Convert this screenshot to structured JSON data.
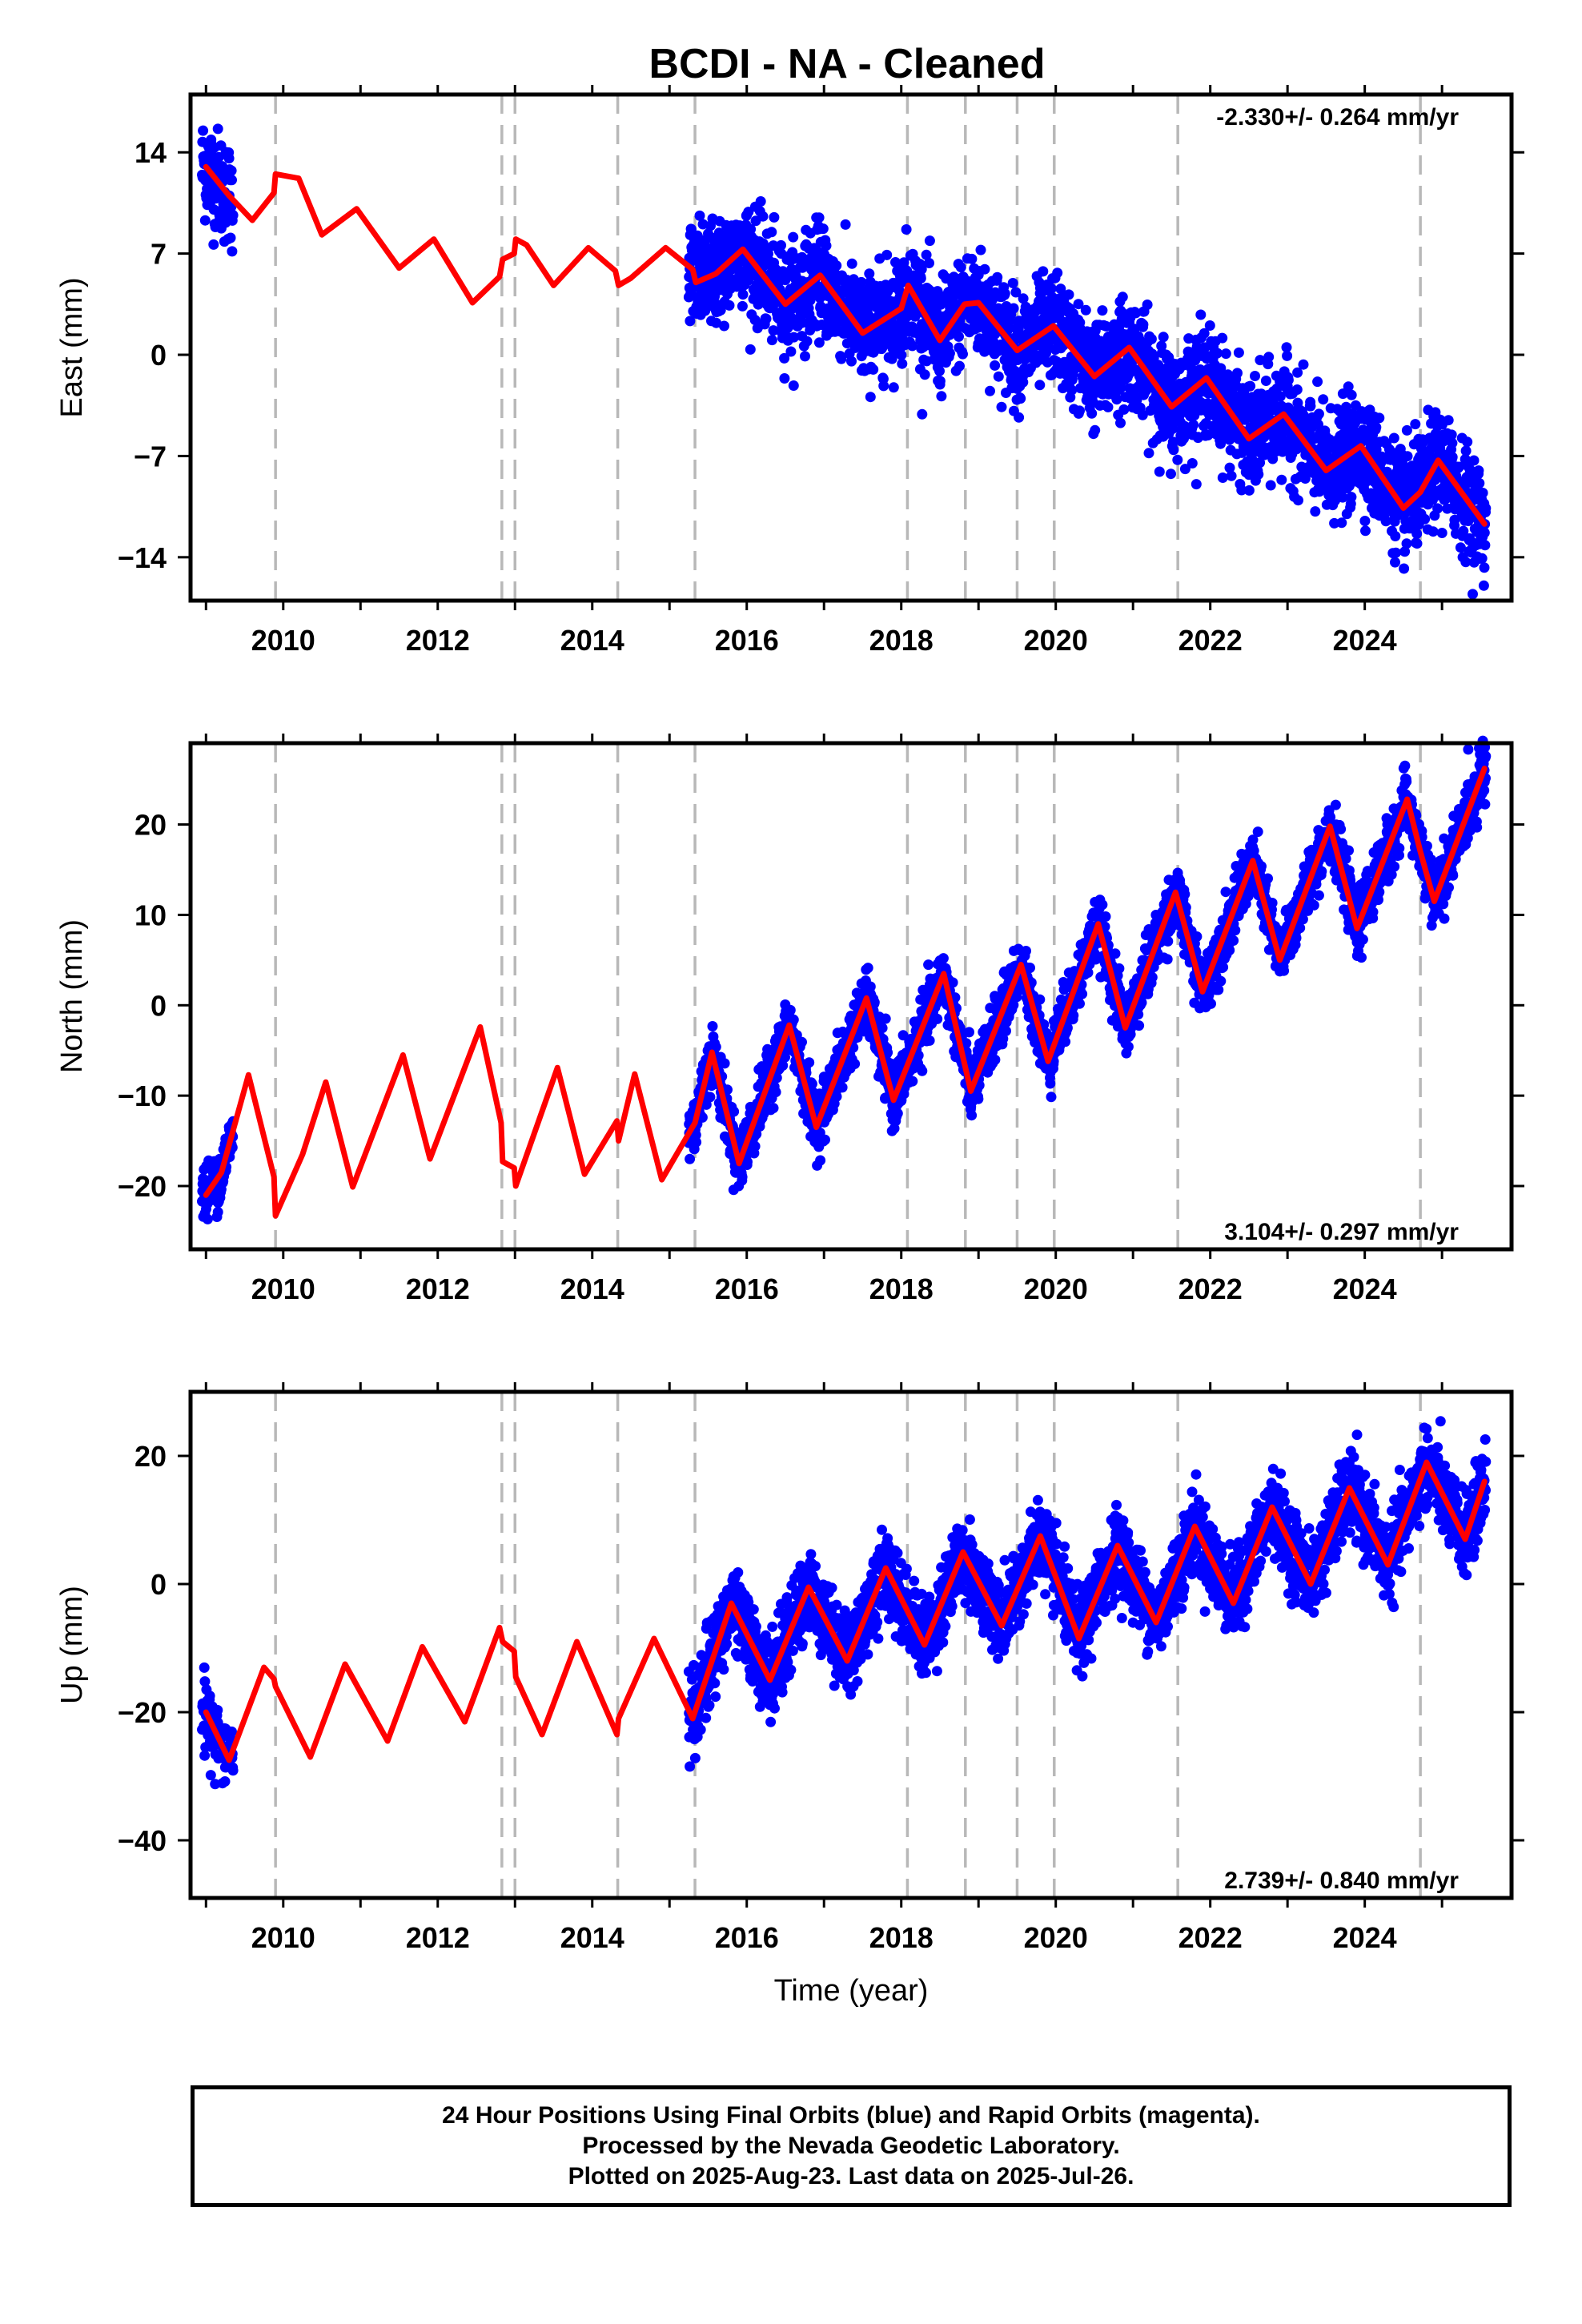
{
  "colors": {
    "data_points": "#0000ff",
    "model_fit": "#ff0000",
    "event_lines": "#b8b8b8",
    "frame": "#000000"
  },
  "footer": {
    "line1": "24 Hour Positions Using Final Orbits (blue) and Rapid Orbits (magenta).",
    "line2": "Processed by the Nevada Geodetic Laboratory.",
    "line3": "Plotted on 2025-Aug-23. Last data on 2025-Jul-26."
  },
  "chart_data": {
    "title": "BCDI  - NA - Cleaned",
    "xlabel": "Time (year)",
    "xlim": [
      2008.8,
      2025.9
    ],
    "x_ticks": [
      "2010",
      "2012",
      "2014",
      "2016",
      "2018",
      "2020",
      "2022",
      "2024"
    ],
    "event_lines_years": [
      2009.9,
      2012.83,
      2013.0,
      2014.33,
      2015.33,
      2018.08,
      2018.83,
      2019.5,
      2019.98,
      2021.58,
      2024.72
    ],
    "data_span_years": [
      [
        2008.95,
        2009.35
      ],
      [
        2015.25,
        2025.57
      ]
    ],
    "panels": [
      {
        "type": "scatter",
        "ylabel": "East (mm)",
        "ylim": [
          -17,
          18
        ],
        "y_ticks": [
          "14",
          "7",
          "0",
          "−7",
          "−14"
        ],
        "rate": "-2.330+/- 0.264 mm/yr",
        "rate_position": "top-right",
        "series": [
          {
            "name": "24 Hour Positions",
            "trend_per_year": -2.33,
            "value_at_2016": 5.5,
            "seasonal_amplitude": 2.2,
            "scatter": 1.8
          },
          {
            "name": "model fit",
            "points": [
              [
                2009.0,
                13.0
              ],
              [
                2009.3,
                11.0
              ],
              [
                2009.6,
                9.3
              ],
              [
                2009.88,
                11.2
              ],
              [
                2009.9,
                12.5
              ],
              [
                2010.2,
                12.2
              ],
              [
                2010.5,
                8.3
              ],
              [
                2010.95,
                10.1
              ],
              [
                2011.5,
                6.0
              ],
              [
                2011.95,
                8.0
              ],
              [
                2012.45,
                3.6
              ],
              [
                2012.8,
                5.4
              ],
              [
                2012.84,
                6.6
              ],
              [
                2012.99,
                7.0
              ],
              [
                2013.01,
                8.0
              ],
              [
                2013.15,
                7.6
              ],
              [
                2013.5,
                4.8
              ],
              [
                2013.95,
                7.4
              ],
              [
                2014.3,
                5.8
              ],
              [
                2014.34,
                4.8
              ],
              [
                2014.5,
                5.3
              ],
              [
                2014.95,
                7.4
              ],
              [
                2015.3,
                5.9
              ],
              [
                2015.34,
                5.0
              ],
              [
                2015.6,
                5.6
              ],
              [
                2015.95,
                7.3
              ],
              [
                2016.5,
                3.5
              ],
              [
                2016.95,
                5.5
              ],
              [
                2017.5,
                1.5
              ],
              [
                2018.0,
                3.2
              ],
              [
                2018.09,
                4.8
              ],
              [
                2018.5,
                1.0
              ],
              [
                2018.82,
                3.5
              ],
              [
                2019.0,
                3.6
              ],
              [
                2019.5,
                0.3
              ],
              [
                2019.97,
                2.0
              ],
              [
                2020.5,
                -1.5
              ],
              [
                2020.95,
                0.5
              ],
              [
                2021.5,
                -3.6
              ],
              [
                2021.95,
                -1.6
              ],
              [
                2022.5,
                -5.8
              ],
              [
                2022.95,
                -4.1
              ],
              [
                2023.5,
                -8.0
              ],
              [
                2023.95,
                -6.3
              ],
              [
                2024.5,
                -10.6
              ],
              [
                2024.72,
                -9.5
              ],
              [
                2024.95,
                -7.3
              ],
              [
                2025.55,
                -11.7
              ]
            ]
          }
        ]
      },
      {
        "type": "scatter",
        "ylabel": "North (mm)",
        "ylim": [
          -27,
          29
        ],
        "y_ticks": [
          "20",
          "10",
          "0",
          "−10",
          "−20"
        ],
        "rate": "3.104+/- 0.297 mm/yr",
        "rate_position": "bottom-right",
        "series": [
          {
            "name": "24 Hour Positions",
            "trend_per_year": 3.104,
            "value_at_2016": -14.0,
            "seasonal_amplitude": 6.0,
            "scatter": 1.6
          },
          {
            "name": "model fit",
            "points": [
              [
                2009.0,
                -21.0
              ],
              [
                2009.2,
                -18.5
              ],
              [
                2009.55,
                -7.7
              ],
              [
                2009.88,
                -19.0
              ],
              [
                2009.9,
                -23.3
              ],
              [
                2010.25,
                -16.5
              ],
              [
                2010.55,
                -8.5
              ],
              [
                2010.9,
                -20.1
              ],
              [
                2011.55,
                -5.5
              ],
              [
                2011.9,
                -17.0
              ],
              [
                2012.55,
                -2.4
              ],
              [
                2012.82,
                -13.0
              ],
              [
                2012.84,
                -17.3
              ],
              [
                2012.99,
                -18.0
              ],
              [
                2013.01,
                -20.0
              ],
              [
                2013.55,
                -6.9
              ],
              [
                2013.9,
                -18.7
              ],
              [
                2014.32,
                -12.8
              ],
              [
                2014.34,
                -15.0
              ],
              [
                2014.55,
                -7.6
              ],
              [
                2014.9,
                -19.3
              ],
              [
                2015.33,
                -13.0
              ],
              [
                2015.55,
                -5.2
              ],
              [
                2015.9,
                -17.5
              ],
              [
                2016.55,
                -2.2
              ],
              [
                2016.9,
                -13.5
              ],
              [
                2017.55,
                0.8
              ],
              [
                2017.9,
                -10.5
              ],
              [
                2018.55,
                3.5
              ],
              [
                2018.9,
                -9.5
              ],
              [
                2019.55,
                4.5
              ],
              [
                2019.9,
                -6.2
              ],
              [
                2020.55,
                9.0
              ],
              [
                2020.9,
                -2.5
              ],
              [
                2021.55,
                12.5
              ],
              [
                2021.9,
                1.5
              ],
              [
                2022.55,
                16.0
              ],
              [
                2022.9,
                5.0
              ],
              [
                2023.55,
                19.8
              ],
              [
                2023.9,
                8.5
              ],
              [
                2024.55,
                22.8
              ],
              [
                2024.72,
                17.0
              ],
              [
                2024.9,
                11.5
              ],
              [
                2025.55,
                26.2
              ]
            ]
          }
        ]
      },
      {
        "type": "scatter",
        "ylabel": "Up (mm)",
        "ylim": [
          -49,
          30
        ],
        "y_ticks": [
          "20",
          "0",
          "−20",
          "−40"
        ],
        "rate": "2.739+/- 0.840 mm/yr",
        "rate_position": "bottom-right",
        "series": [
          {
            "name": "24 Hour Positions",
            "trend_per_year": 2.739,
            "value_at_2016": -8.0,
            "seasonal_amplitude": 7.0,
            "scatter": 3.0
          },
          {
            "name": "model fit",
            "points": [
              [
                2009.0,
                -20.0
              ],
              [
                2009.3,
                -27.5
              ],
              [
                2009.75,
                -13.0
              ],
              [
                2009.88,
                -14.8
              ],
              [
                2009.9,
                -16.0
              ],
              [
                2010.35,
                -27.0
              ],
              [
                2010.8,
                -12.5
              ],
              [
                2011.35,
                -24.5
              ],
              [
                2011.8,
                -9.8
              ],
              [
                2012.35,
                -21.5
              ],
              [
                2012.8,
                -6.8
              ],
              [
                2012.84,
                -9.0
              ],
              [
                2012.99,
                -10.5
              ],
              [
                2013.01,
                -14.5
              ],
              [
                2013.35,
                -23.5
              ],
              [
                2013.8,
                -9.0
              ],
              [
                2014.32,
                -23.5
              ],
              [
                2014.34,
                -21.0
              ],
              [
                2014.8,
                -8.5
              ],
              [
                2015.3,
                -21.0
              ],
              [
                2015.8,
                -3.0
              ],
              [
                2016.3,
                -15.0
              ],
              [
                2016.8,
                -0.5
              ],
              [
                2017.3,
                -12.0
              ],
              [
                2017.8,
                2.5
              ],
              [
                2018.3,
                -9.5
              ],
              [
                2018.8,
                5.0
              ],
              [
                2019.3,
                -6.5
              ],
              [
                2019.8,
                7.5
              ],
              [
                2020.3,
                -8.5
              ],
              [
                2020.8,
                6.0
              ],
              [
                2021.3,
                -6.0
              ],
              [
                2021.8,
                9.0
              ],
              [
                2022.3,
                -3.0
              ],
              [
                2022.8,
                12.0
              ],
              [
                2023.3,
                0.0
              ],
              [
                2023.8,
                15.0
              ],
              [
                2024.3,
                3.0
              ],
              [
                2024.8,
                19.0
              ],
              [
                2025.3,
                7.0
              ],
              [
                2025.55,
                16.0
              ]
            ]
          }
        ]
      }
    ]
  }
}
